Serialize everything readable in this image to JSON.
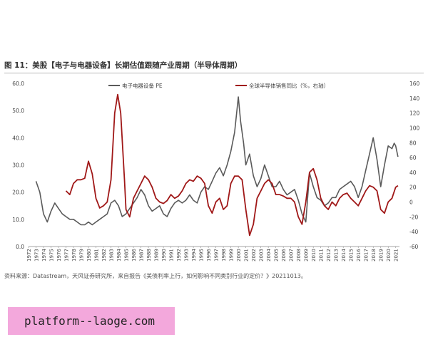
{
  "header": {
    "title": "图 11：美股【电子与电器设备】长期估值跟随产业周期（半导体周期）"
  },
  "footer": {
    "source": "资料来源：Datastream，天风证券研究所，来自报告《美债利率上行，如何影响不同类别行业的定价？》20211013。"
  },
  "watermark": {
    "text": "platform--laoge.com"
  },
  "colors": {
    "pe_series": "#5a5a5a",
    "sales_series": "#a01818",
    "axis": "#888888",
    "text": "#444444"
  },
  "chart_data": {
    "type": "line",
    "title": "",
    "xlabel": "",
    "ylabel": "",
    "x_ticks": [
      "1972",
      "1973",
      "1974",
      "1975",
      "1976",
      "1977",
      "1978",
      "1979",
      "1980",
      "1981",
      "1982",
      "1983",
      "1984",
      "1985",
      "1986",
      "1987",
      "1988",
      "1989",
      "1990",
      "1991",
      "1992",
      "1993",
      "1994",
      "1995",
      "1996",
      "1997",
      "1998",
      "1999",
      "2000",
      "2001",
      "2002",
      "2003",
      "2004",
      "2005",
      "2006",
      "2007",
      "2008",
      "2009",
      "2010",
      "2011",
      "2012",
      "2013",
      "2014",
      "2015",
      "2016",
      "2017",
      "2018",
      "2019",
      "2020",
      "2021"
    ],
    "xlim": [
      1972,
      2021.5
    ],
    "y_left": {
      "lim": [
        0,
        60
      ],
      "ticks": [
        "0.0",
        "10.0",
        "20.0",
        "30.0",
        "40.0",
        "50.0",
        "60.0"
      ]
    },
    "y_right": {
      "lim": [
        -60,
        160
      ],
      "ticks": [
        "-60",
        "-40",
        "-20",
        "0",
        "20",
        "40",
        "60",
        "80",
        "100",
        "120",
        "140",
        "160"
      ]
    },
    "grid": false,
    "legend_position": "top",
    "series": [
      {
        "name": "电子电器设备 PE",
        "axis": "left",
        "points": [
          [
            1973.0,
            24
          ],
          [
            1973.5,
            20
          ],
          [
            1974.0,
            12
          ],
          [
            1974.5,
            9
          ],
          [
            1975.0,
            13
          ],
          [
            1975.5,
            16
          ],
          [
            1976.0,
            14
          ],
          [
            1976.5,
            12
          ],
          [
            1977.0,
            11
          ],
          [
            1977.5,
            10
          ],
          [
            1978.0,
            10
          ],
          [
            1978.5,
            9
          ],
          [
            1979.0,
            8
          ],
          [
            1979.5,
            8
          ],
          [
            1980.0,
            9
          ],
          [
            1980.5,
            8
          ],
          [
            1981.0,
            9
          ],
          [
            1981.5,
            10
          ],
          [
            1982.0,
            11
          ],
          [
            1982.5,
            12
          ],
          [
            1983.0,
            16
          ],
          [
            1983.5,
            17
          ],
          [
            1984.0,
            15
          ],
          [
            1984.5,
            11
          ],
          [
            1985.0,
            12
          ],
          [
            1985.5,
            14
          ],
          [
            1986.0,
            16
          ],
          [
            1986.5,
            18
          ],
          [
            1987.0,
            21
          ],
          [
            1987.5,
            19
          ],
          [
            1988.0,
            15
          ],
          [
            1988.5,
            13
          ],
          [
            1989.0,
            14
          ],
          [
            1989.5,
            15
          ],
          [
            1990.0,
            12
          ],
          [
            1990.5,
            11
          ],
          [
            1991.0,
            14
          ],
          [
            1991.5,
            16
          ],
          [
            1992.0,
            17
          ],
          [
            1992.5,
            16
          ],
          [
            1993.0,
            17
          ],
          [
            1993.5,
            19
          ],
          [
            1994.0,
            17
          ],
          [
            1994.5,
            16
          ],
          [
            1995.0,
            20
          ],
          [
            1995.5,
            22
          ],
          [
            1996.0,
            21
          ],
          [
            1996.5,
            24
          ],
          [
            1997.0,
            27
          ],
          [
            1997.5,
            29
          ],
          [
            1998.0,
            26
          ],
          [
            1998.5,
            30
          ],
          [
            1999.0,
            35
          ],
          [
            1999.5,
            42
          ],
          [
            2000.0,
            55
          ],
          [
            2000.3,
            46
          ],
          [
            2000.7,
            38
          ],
          [
            2001.0,
            30
          ],
          [
            2001.5,
            34
          ],
          [
            2002.0,
            26
          ],
          [
            2002.5,
            22
          ],
          [
            2003.0,
            25
          ],
          [
            2003.5,
            30
          ],
          [
            2004.0,
            26
          ],
          [
            2004.5,
            22
          ],
          [
            2005.0,
            22
          ],
          [
            2005.5,
            24
          ],
          [
            2006.0,
            21
          ],
          [
            2006.5,
            19
          ],
          [
            2007.0,
            20
          ],
          [
            2007.5,
            21
          ],
          [
            2008.0,
            17
          ],
          [
            2008.5,
            12
          ],
          [
            2009.0,
            9
          ],
          [
            2009.5,
            27
          ],
          [
            2010.0,
            22
          ],
          [
            2010.5,
            18
          ],
          [
            2011.0,
            17
          ],
          [
            2011.5,
            15
          ],
          [
            2012.0,
            16
          ],
          [
            2012.5,
            18
          ],
          [
            2013.0,
            18
          ],
          [
            2013.5,
            21
          ],
          [
            2014.0,
            22
          ],
          [
            2014.5,
            23
          ],
          [
            2015.0,
            24
          ],
          [
            2015.5,
            22
          ],
          [
            2016.0,
            18
          ],
          [
            2016.5,
            22
          ],
          [
            2017.0,
            28
          ],
          [
            2017.5,
            34
          ],
          [
            2018.0,
            40
          ],
          [
            2018.5,
            32
          ],
          [
            2019.0,
            22
          ],
          [
            2019.5,
            30
          ],
          [
            2020.0,
            37
          ],
          [
            2020.5,
            36
          ],
          [
            2020.8,
            38
          ],
          [
            2021.0,
            37
          ],
          [
            2021.3,
            33
          ]
        ]
      },
      {
        "name": "全球半导体销售同比（%，右轴）",
        "axis": "right",
        "points": [
          [
            1977.0,
            15
          ],
          [
            1977.5,
            10
          ],
          [
            1978.0,
            25
          ],
          [
            1978.5,
            30
          ],
          [
            1979.0,
            30
          ],
          [
            1979.5,
            32
          ],
          [
            1980.0,
            55
          ],
          [
            1980.5,
            38
          ],
          [
            1981.0,
            5
          ],
          [
            1981.5,
            -8
          ],
          [
            1982.0,
            -5
          ],
          [
            1982.5,
            0
          ],
          [
            1983.0,
            30
          ],
          [
            1983.5,
            120
          ],
          [
            1983.9,
            145
          ],
          [
            1984.3,
            120
          ],
          [
            1984.8,
            30
          ],
          [
            1985.0,
            -10
          ],
          [
            1985.5,
            -20
          ],
          [
            1986.0,
            5
          ],
          [
            1986.5,
            15
          ],
          [
            1987.0,
            25
          ],
          [
            1987.5,
            35
          ],
          [
            1988.0,
            30
          ],
          [
            1988.5,
            20
          ],
          [
            1989.0,
            5
          ],
          [
            1989.5,
            0
          ],
          [
            1990.0,
            -2
          ],
          [
            1990.5,
            2
          ],
          [
            1991.0,
            10
          ],
          [
            1991.5,
            5
          ],
          [
            1992.0,
            8
          ],
          [
            1992.5,
            15
          ],
          [
            1993.0,
            25
          ],
          [
            1993.5,
            30
          ],
          [
            1994.0,
            28
          ],
          [
            1994.5,
            35
          ],
          [
            1995.0,
            32
          ],
          [
            1995.5,
            25
          ],
          [
            1996.0,
            -5
          ],
          [
            1996.5,
            -15
          ],
          [
            1997.0,
            0
          ],
          [
            1997.5,
            5
          ],
          [
            1998.0,
            -10
          ],
          [
            1998.5,
            -5
          ],
          [
            1999.0,
            25
          ],
          [
            1999.5,
            35
          ],
          [
            2000.0,
            35
          ],
          [
            2000.5,
            30
          ],
          [
            2001.0,
            -10
          ],
          [
            2001.5,
            -45
          ],
          [
            2002.0,
            -30
          ],
          [
            2002.5,
            5
          ],
          [
            2003.0,
            15
          ],
          [
            2003.5,
            25
          ],
          [
            2004.0,
            30
          ],
          [
            2004.5,
            25
          ],
          [
            2005.0,
            10
          ],
          [
            2005.5,
            10
          ],
          [
            2006.0,
            8
          ],
          [
            2006.5,
            5
          ],
          [
            2007.0,
            5
          ],
          [
            2007.5,
            0
          ],
          [
            2008.0,
            -20
          ],
          [
            2008.5,
            -30
          ],
          [
            2009.0,
            0
          ],
          [
            2009.5,
            40
          ],
          [
            2010.0,
            45
          ],
          [
            2010.5,
            30
          ],
          [
            2011.0,
            5
          ],
          [
            2011.5,
            -5
          ],
          [
            2012.0,
            -10
          ],
          [
            2012.5,
            0
          ],
          [
            2013.0,
            -5
          ],
          [
            2013.5,
            5
          ],
          [
            2014.0,
            10
          ],
          [
            2014.5,
            12
          ],
          [
            2015.0,
            5
          ],
          [
            2015.5,
            0
          ],
          [
            2016.0,
            -5
          ],
          [
            2016.5,
            5
          ],
          [
            2017.0,
            15
          ],
          [
            2017.5,
            22
          ],
          [
            2018.0,
            20
          ],
          [
            2018.5,
            15
          ],
          [
            2019.0,
            -10
          ],
          [
            2019.5,
            -15
          ],
          [
            2020.0,
            0
          ],
          [
            2020.5,
            5
          ],
          [
            2021.0,
            20
          ],
          [
            2021.3,
            22
          ]
        ]
      }
    ]
  }
}
